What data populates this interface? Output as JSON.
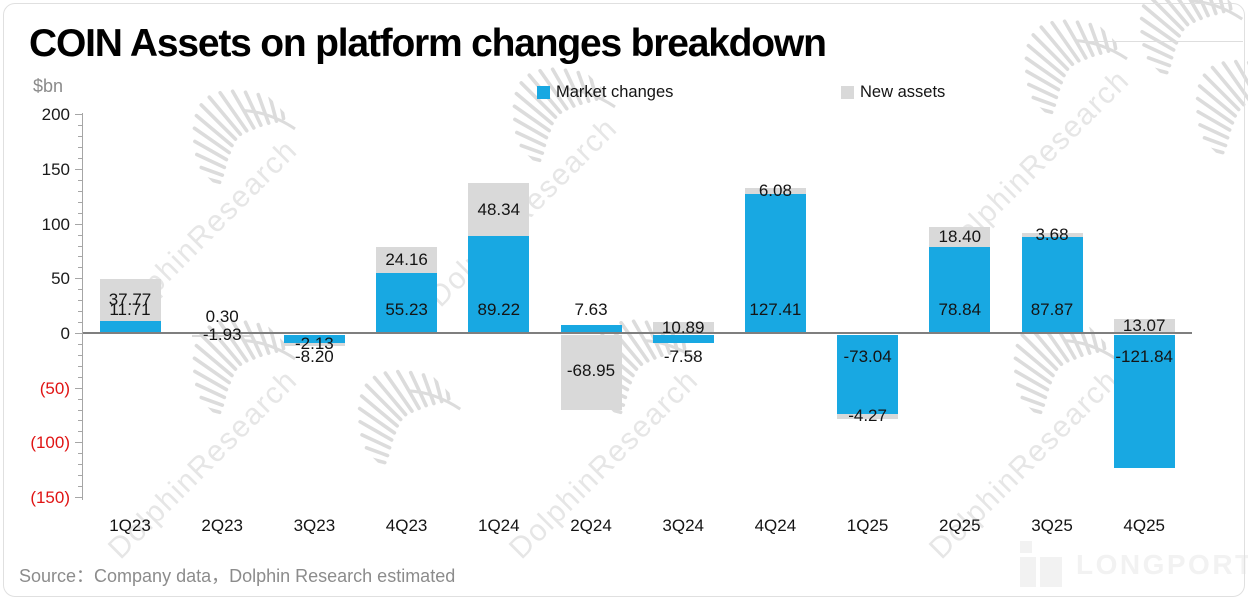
{
  "title": "COIN Assets on platform changes breakdown",
  "y_axis": {
    "unit": "$bn",
    "ticks": [
      {
        "label": "200",
        "value": 200
      },
      {
        "label": "150",
        "value": 150
      },
      {
        "label": "100",
        "value": 100
      },
      {
        "label": "50",
        "value": 50
      },
      {
        "label": "0",
        "value": 0
      },
      {
        "label": "(50)",
        "value": -50
      },
      {
        "label": "(100)",
        "value": -100
      },
      {
        "label": "(150)",
        "value": -150
      }
    ]
  },
  "legend": [
    {
      "label": "Market changes",
      "color": "#18a8e2"
    },
    {
      "label": "New assets",
      "color": "#d9d9d9"
    }
  ],
  "source": "Source：Company data，Dolphin Research estimated",
  "watermark": {
    "text": "DolphinResearch"
  },
  "logo": {
    "text": "LONGPORT"
  },
  "colors": {
    "market": "#18a8e2",
    "new_assets": "#d9d9d9",
    "negative_tick": "#e01414",
    "zero_line": "#7f7f7f",
    "axis_line": "#a6a6a6",
    "label_text": "#1a1a1a",
    "muted_text": "#8c8c8c"
  },
  "chart_data": {
    "type": "bar",
    "stacked": true,
    "title": "COIN Assets on platform changes breakdown",
    "ylabel": "$bn",
    "ylim": [
      -150,
      200
    ],
    "ytick_step": 50,
    "grid": false,
    "legend_position": "top",
    "data_labels": true,
    "categories": [
      "1Q23",
      "2Q23",
      "3Q23",
      "4Q23",
      "1Q24",
      "2Q24",
      "3Q24",
      "4Q24",
      "1Q25",
      "2Q25",
      "3Q25",
      "4Q25"
    ],
    "series": [
      {
        "name": "Market changes",
        "values": [
          11.71,
          0.3,
          -8.2,
          55.23,
          89.22,
          7.63,
          -7.58,
          127.41,
          -73.04,
          78.84,
          87.87,
          -121.84
        ]
      },
      {
        "name": "New assets",
        "values": [
          37.77,
          -1.93,
          -2.13,
          24.16,
          48.34,
          -68.95,
          10.89,
          6.08,
          -4.27,
          18.4,
          3.68,
          13.07
        ]
      }
    ]
  }
}
